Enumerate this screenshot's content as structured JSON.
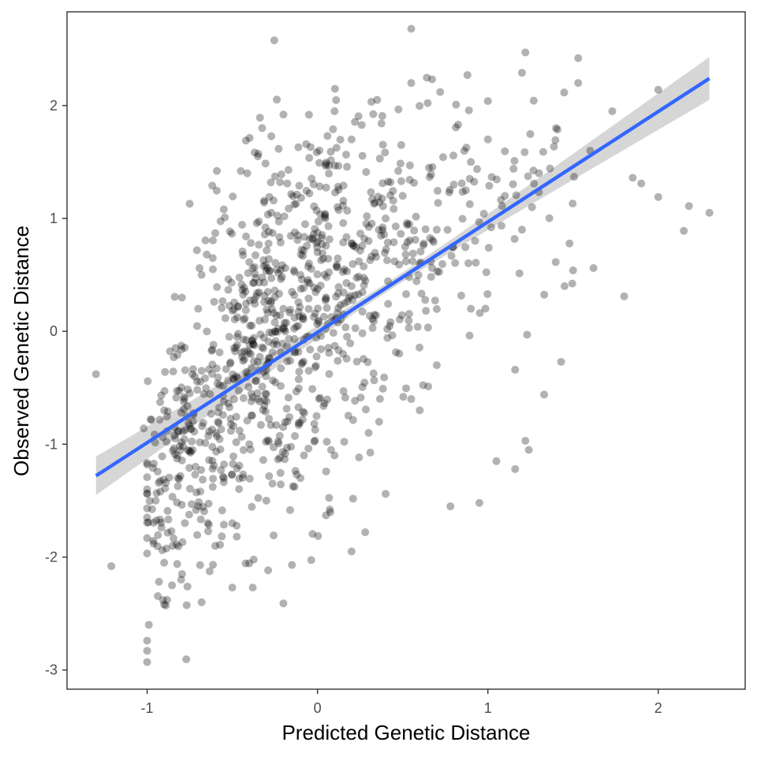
{
  "chart_data": {
    "type": "scatter",
    "title": "",
    "xlabel": "Predicted Genetic Distance",
    "ylabel": "Observed Genetic Distance",
    "xlim": [
      -1.47,
      2.51
    ],
    "ylim": [
      -3.17,
      2.83
    ],
    "xticks": [
      -1,
      0,
      1,
      2
    ],
    "yticks": [
      -3,
      -2,
      -1,
      0,
      1,
      2
    ],
    "grid": false,
    "legend": "none",
    "point_color": "#000000",
    "point_opacity": 0.3,
    "fit_line": {
      "method": "linear",
      "color": "#3366ff",
      "se_band_color": "#999999",
      "x0": -1.3,
      "y0": -1.28,
      "x1": 2.3,
      "y1": 2.24,
      "band_halfwidth_center": 0.04,
      "band_halfwidth_ends": 0.19,
      "band_center_x": 0.4
    },
    "noise_seed": 20240521,
    "series": [
      {
        "points": [
          [
            -1.3,
            -0.38
          ],
          [
            -1.21,
            -2.08
          ],
          [
            -1.0,
            -2.93
          ],
          [
            -1.0,
            -2.83
          ],
          [
            -1.0,
            -2.74
          ],
          [
            -0.99,
            -2.6
          ],
          [
            -1.0,
            -1.65
          ],
          [
            -1.0,
            -1.18
          ],
          [
            -0.98,
            -0.78
          ],
          [
            -1.02,
            -0.86
          ],
          [
            -0.9,
            -0.7
          ],
          [
            -0.8,
            -0.72
          ],
          [
            -0.75,
            -0.55
          ],
          [
            -0.72,
            -0.4
          ],
          [
            -0.7,
            0.2
          ],
          [
            -0.68,
            0.5
          ],
          [
            -0.65,
            0.68
          ],
          [
            -0.6,
            0.87
          ],
          [
            -0.55,
            1.08
          ],
          [
            -0.75,
            1.13
          ],
          [
            -0.45,
            1.42
          ],
          [
            -0.42,
            1.69
          ],
          [
            -0.35,
            1.55
          ],
          [
            -0.2,
            1.92
          ],
          [
            0.1,
            1.95
          ],
          [
            0.2,
            1.7
          ],
          [
            0.35,
            2.05
          ],
          [
            0.55,
            2.68
          ],
          [
            0.55,
            2.2
          ],
          [
            0.72,
            2.12
          ],
          [
            0.88,
            2.27
          ],
          [
            1.0,
            2.04
          ],
          [
            1.2,
            2.29
          ],
          [
            1.22,
            2.47
          ],
          [
            1.53,
            2.42
          ],
          [
            1.53,
            2.2
          ],
          [
            1.73,
            1.95
          ],
          [
            2.0,
            2.14
          ],
          [
            1.85,
            1.36
          ],
          [
            1.9,
            1.31
          ],
          [
            2.0,
            1.19
          ],
          [
            2.18,
            1.11
          ],
          [
            2.3,
            1.05
          ],
          [
            2.15,
            0.89
          ],
          [
            1.8,
            0.31
          ],
          [
            1.62,
            0.56
          ],
          [
            1.5,
            0.54
          ],
          [
            1.45,
            0.4
          ],
          [
            1.43,
            -0.27
          ],
          [
            1.33,
            -0.56
          ],
          [
            1.23,
            -0.03
          ],
          [
            1.16,
            -0.34
          ],
          [
            1.22,
            -0.97
          ],
          [
            1.24,
            -1.05
          ],
          [
            1.16,
            -1.22
          ],
          [
            1.05,
            -1.15
          ],
          [
            0.95,
            -1.52
          ],
          [
            0.78,
            -1.55
          ],
          [
            0.55,
            -0.6
          ],
          [
            0.4,
            -1.44
          ],
          [
            0.28,
            -1.78
          ],
          [
            0.2,
            -1.95
          ],
          [
            0.05,
            -1.63
          ],
          [
            -0.15,
            -2.07
          ],
          [
            -0.2,
            -2.41
          ],
          [
            -0.38,
            -2.27
          ],
          [
            -0.5,
            -2.27
          ],
          [
            -0.68,
            -2.4
          ],
          [
            -0.8,
            -2.2
          ],
          [
            -0.9,
            -2.42
          ],
          [
            -0.7,
            -1.55
          ],
          [
            -0.55,
            -1.3
          ],
          [
            -0.4,
            -1.0
          ],
          [
            -0.35,
            -0.6
          ],
          [
            -0.3,
            -0.3
          ],
          [
            -0.25,
            0.0
          ],
          [
            -0.2,
            0.2
          ],
          [
            -0.15,
            0.35
          ],
          [
            -0.1,
            0.5
          ],
          [
            -0.05,
            0.6
          ],
          [
            0.0,
            0.7
          ],
          [
            0.05,
            0.3
          ],
          [
            0.1,
            0.1
          ],
          [
            0.15,
            -0.2
          ],
          [
            0.2,
            0.4
          ],
          [
            0.3,
            0.8
          ],
          [
            0.4,
            1.0
          ],
          [
            0.5,
            1.2
          ],
          [
            0.6,
            0.6
          ],
          [
            0.7,
            0.9
          ],
          [
            0.8,
            1.3
          ],
          [
            0.9,
            1.5
          ],
          [
            1.0,
            1.7
          ],
          [
            1.1,
            1.2
          ],
          [
            1.2,
            0.9
          ],
          [
            1.3,
            1.4
          ],
          [
            1.4,
            1.8
          ],
          [
            1.6,
            1.6
          ],
          [
            0.9,
            0.2
          ],
          [
            0.7,
            -0.3
          ],
          [
            0.6,
            -0.7
          ],
          [
            0.3,
            -0.9
          ],
          [
            0.1,
            -1.1
          ],
          [
            -0.1,
            -1.3
          ],
          [
            -0.3,
            -1.5
          ],
          [
            -0.5,
            -1.7
          ],
          [
            -0.6,
            -1.9
          ],
          [
            -0.85,
            -1.9
          ],
          [
            -0.9,
            -2.05
          ],
          [
            -0.95,
            -1.5
          ]
        ]
      }
    ],
    "clusters": [
      {
        "cx": -0.92,
        "cy": -1.35,
        "sx": 0.06,
        "sy": 0.45,
        "n": 60
      },
      {
        "cx": -0.78,
        "cy": -1.05,
        "sx": 0.06,
        "sy": 0.7,
        "n": 80
      },
      {
        "cx": -0.62,
        "cy": -0.65,
        "sx": 0.08,
        "sy": 0.75,
        "n": 95
      },
      {
        "cx": -0.45,
        "cy": -0.25,
        "sx": 0.08,
        "sy": 0.75,
        "n": 110
      },
      {
        "cx": -0.3,
        "cy": 0.0,
        "sx": 0.08,
        "sy": 0.8,
        "n": 120
      },
      {
        "cx": -0.15,
        "cy": 0.1,
        "sx": 0.08,
        "sy": 0.8,
        "n": 110
      },
      {
        "cx": 0.0,
        "cy": 0.25,
        "sx": 0.08,
        "sy": 0.78,
        "n": 100
      },
      {
        "cx": 0.15,
        "cy": 0.45,
        "sx": 0.08,
        "sy": 0.72,
        "n": 85
      },
      {
        "cx": 0.32,
        "cy": 0.55,
        "sx": 0.09,
        "sy": 0.7,
        "n": 70
      },
      {
        "cx": 0.5,
        "cy": 0.7,
        "sx": 0.1,
        "sy": 0.65,
        "n": 55
      },
      {
        "cx": 0.7,
        "cy": 0.9,
        "sx": 0.1,
        "sy": 0.6,
        "n": 40
      },
      {
        "cx": 0.92,
        "cy": 1.1,
        "sx": 0.1,
        "sy": 0.55,
        "n": 30
      },
      {
        "cx": 1.18,
        "cy": 1.25,
        "sx": 0.1,
        "sy": 0.5,
        "n": 20
      },
      {
        "cx": 1.4,
        "cy": 1.3,
        "sx": 0.08,
        "sy": 0.45,
        "n": 10
      }
    ]
  }
}
